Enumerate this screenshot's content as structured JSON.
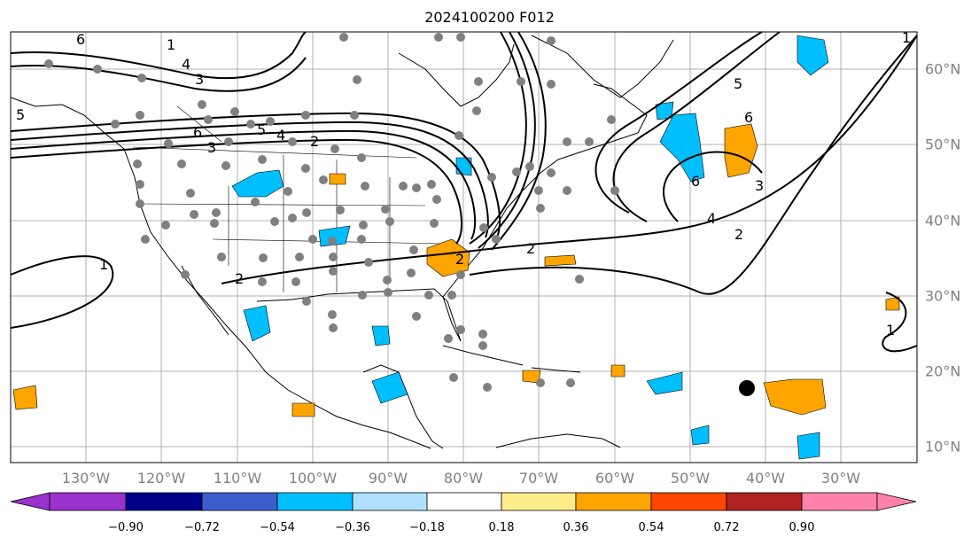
{
  "title": "2024100200 F012",
  "lon_labels": [
    "130°W",
    "120°W",
    "110°W",
    "100°W",
    "90°W",
    "80°W",
    "70°W",
    "60°W",
    "50°W",
    "40°W",
    "30°W"
  ],
  "lat_labels": [
    "60°N",
    "50°N",
    "40°N",
    "30°N",
    "20°N",
    "10°N"
  ],
  "colorbar": {
    "ticks": [
      "−0.90",
      "−0.72",
      "−0.54",
      "−0.36",
      "−0.18",
      "0.18",
      "0.36",
      "0.54",
      "0.72",
      "0.90"
    ],
    "colors": [
      "#9a32cd",
      "#00008b",
      "#3a5fcd",
      "#00bfff",
      "#b0e2ff",
      "#ffffff",
      "#ffec8b",
      "#ffa500",
      "#ff4500",
      "#b22222",
      "#ff82ab"
    ]
  },
  "contour_labels": [
    "6",
    "5",
    "4",
    "3",
    "2",
    "1",
    "6",
    "5",
    "4",
    "3",
    "2",
    "1",
    "2",
    "1",
    "2",
    "6",
    "5",
    "6",
    "3",
    "4",
    "2",
    "1"
  ],
  "colors": {
    "shade_blue": "#00bfff",
    "shade_orange": "#ffa500",
    "station": "#808080",
    "contour": "#000000"
  }
}
